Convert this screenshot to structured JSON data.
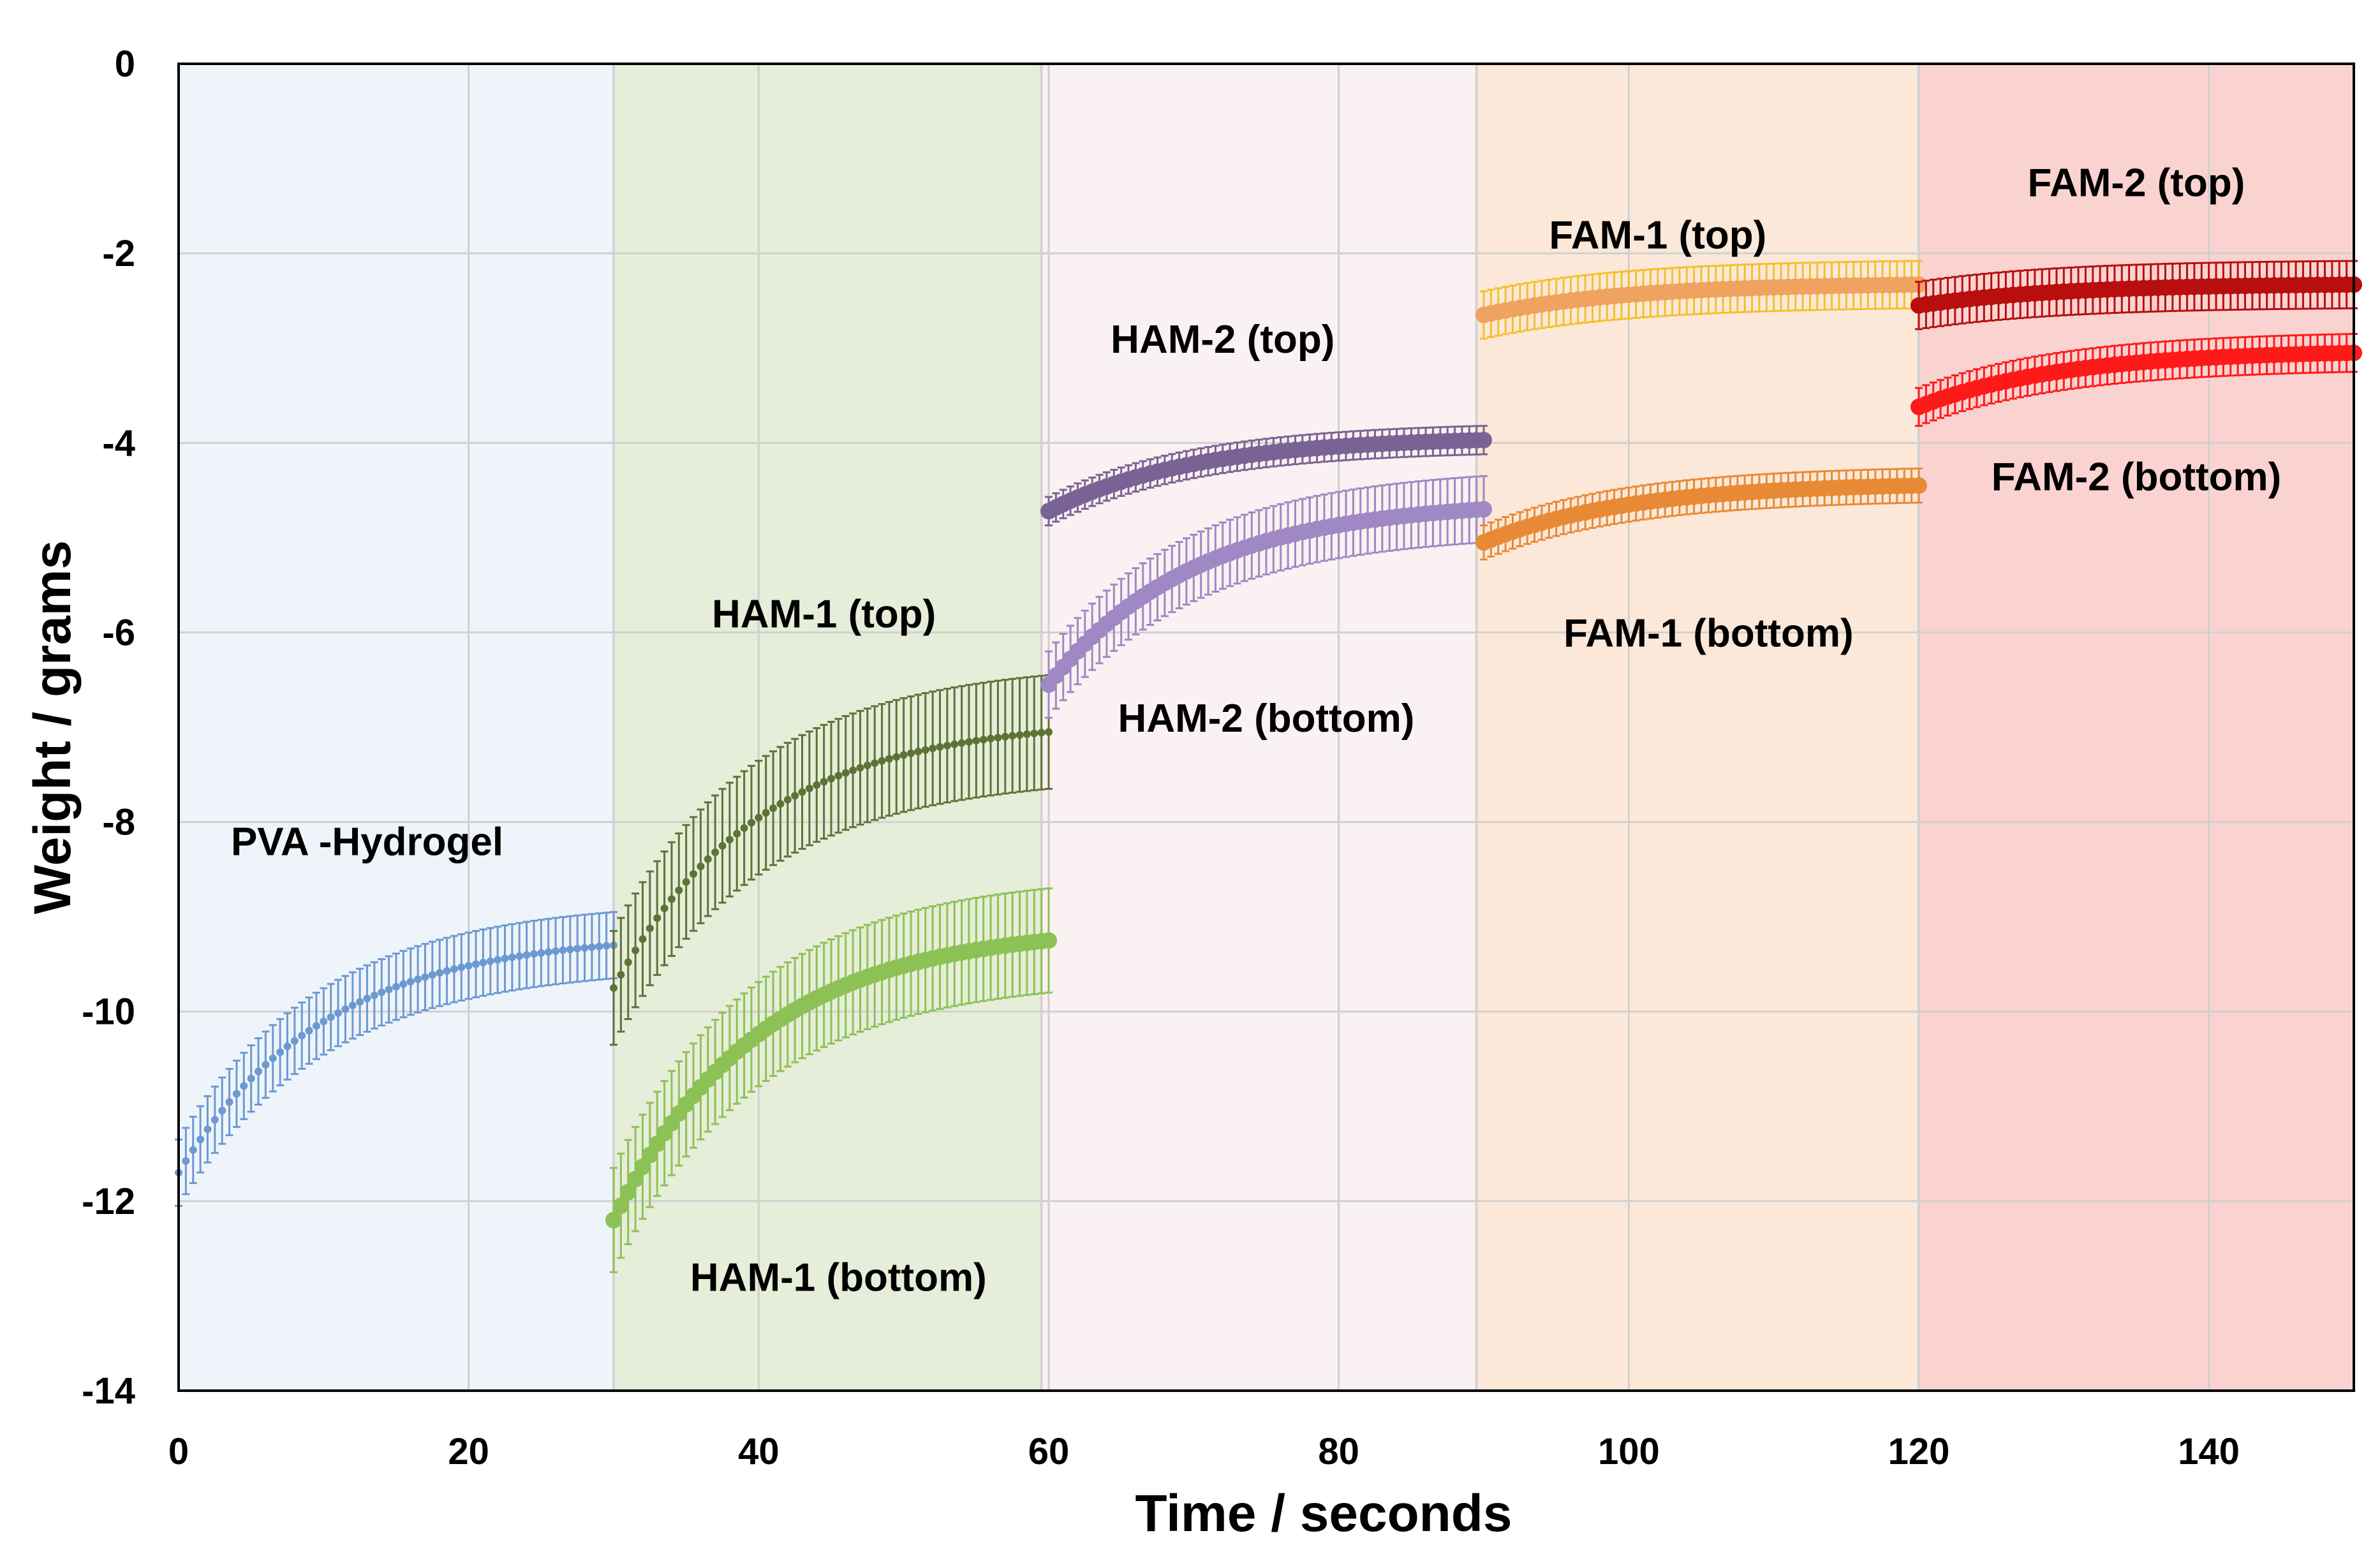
{
  "chart_data": {
    "type": "line",
    "title": "",
    "xlabel": "Time / seconds",
    "ylabel": "Weight / grams",
    "xlim": [
      0,
      150
    ],
    "ylim": [
      -14,
      0
    ],
    "x_ticks": [
      0,
      20,
      40,
      60,
      80,
      100,
      120,
      140
    ],
    "y_ticks": [
      0,
      -2,
      -4,
      -6,
      -8,
      -10,
      -12,
      -14
    ],
    "grid": true,
    "regions": [
      {
        "name": "PVA",
        "x_start": 0,
        "x_end": 30,
        "color": "#eef4fa"
      },
      {
        "name": "HAM-1",
        "x_start": 30,
        "x_end": 59.5,
        "color": "#e6edd9"
      },
      {
        "name": "HAM-2",
        "x_start": 59.5,
        "x_end": 89.5,
        "color": "#faf1f2"
      },
      {
        "name": "FAM-1",
        "x_start": 89.5,
        "x_end": 120,
        "color": "#fce8d8"
      },
      {
        "name": "FAM-2",
        "x_start": 120,
        "x_end": 150,
        "color": "#fad3d1"
      }
    ],
    "series": [
      {
        "name": "PVA -Hydrogel",
        "x_start": 0,
        "x_end": 30,
        "y_start": -11.7,
        "y_end": -9.3,
        "error": 0.35,
        "color": "#6c99d1",
        "marker_size": "small",
        "label_anchor": [
          13,
          -8.2
        ]
      },
      {
        "name": "HAM-1 (top)",
        "x_start": 30,
        "x_end": 60,
        "y_start": -9.75,
        "y_end": -7.05,
        "error": 0.6,
        "color": "#5c7336",
        "marker_size": "small",
        "label_anchor": [
          44.5,
          -5.8
        ]
      },
      {
        "name": "HAM-1 (bottom)",
        "x_start": 30,
        "x_end": 60,
        "y_start": -12.2,
        "y_end": -9.25,
        "error": 0.55,
        "color": "#8cc255",
        "marker_size": "large",
        "label_anchor": [
          45.5,
          -12.8
        ]
      },
      {
        "name": "HAM-2 (top)",
        "x_start": 60,
        "x_end": 90,
        "y_start": -4.72,
        "y_end": -3.97,
        "error": 0.15,
        "color": "#7a6295",
        "marker_size": "large",
        "label_anchor": [
          72,
          -2.9
        ]
      },
      {
        "name": "HAM-2 (bottom)",
        "x_start": 60,
        "x_end": 90,
        "y_start": -6.55,
        "y_end": -4.7,
        "error": 0.35,
        "color": "#9f88c4",
        "marker_size": "large",
        "label_anchor": [
          75,
          -6.9
        ]
      },
      {
        "name": "FAM-1 (top)",
        "x_start": 90,
        "x_end": 120,
        "y_start": -2.65,
        "y_end": -2.33,
        "error": 0.25,
        "color": "#f0a260",
        "error_color": "#f3c02c",
        "marker_size": "large",
        "label_anchor": [
          102,
          -1.8
        ]
      },
      {
        "name": "FAM-1 (bottom)",
        "x_start": 90,
        "x_end": 120,
        "y_start": -5.05,
        "y_end": -4.45,
        "error": 0.18,
        "color": "#e88a35",
        "marker_size": "large",
        "label_anchor": [
          105.5,
          -6.0
        ]
      },
      {
        "name": "FAM-2 (top)",
        "x_start": 120,
        "x_end": 150,
        "y_start": -2.55,
        "y_end": -2.33,
        "error": 0.25,
        "color": "#b80e0e",
        "marker_size": "large",
        "label_anchor": [
          135,
          -1.25
        ]
      },
      {
        "name": "FAM-2 (bottom)",
        "x_start": 120,
        "x_end": 150,
        "y_start": -3.62,
        "y_end": -3.05,
        "error": 0.2,
        "color": "#ff1a1a",
        "marker_size": "large",
        "label_anchor": [
          135,
          -4.35
        ]
      }
    ]
  }
}
